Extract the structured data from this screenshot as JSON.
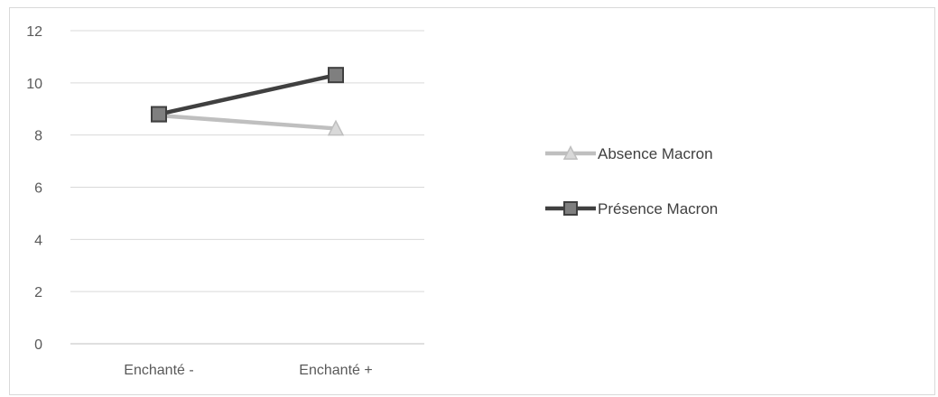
{
  "chart_data": {
    "type": "line",
    "categories": [
      "Enchanté -",
      "Enchanté +"
    ],
    "ylim": [
      0,
      12
    ],
    "yticks": [
      0,
      2,
      4,
      6,
      8,
      10,
      12
    ],
    "grid": true,
    "legend_position": "right",
    "series": [
      {
        "name": "Absence Macron",
        "values": [
          8.75,
          8.25
        ],
        "color": "#bfbfbf",
        "marker": "triangle"
      },
      {
        "name": "Présence Macron",
        "values": [
          8.8,
          10.3
        ],
        "color": "#404040",
        "marker": "square"
      }
    ]
  }
}
